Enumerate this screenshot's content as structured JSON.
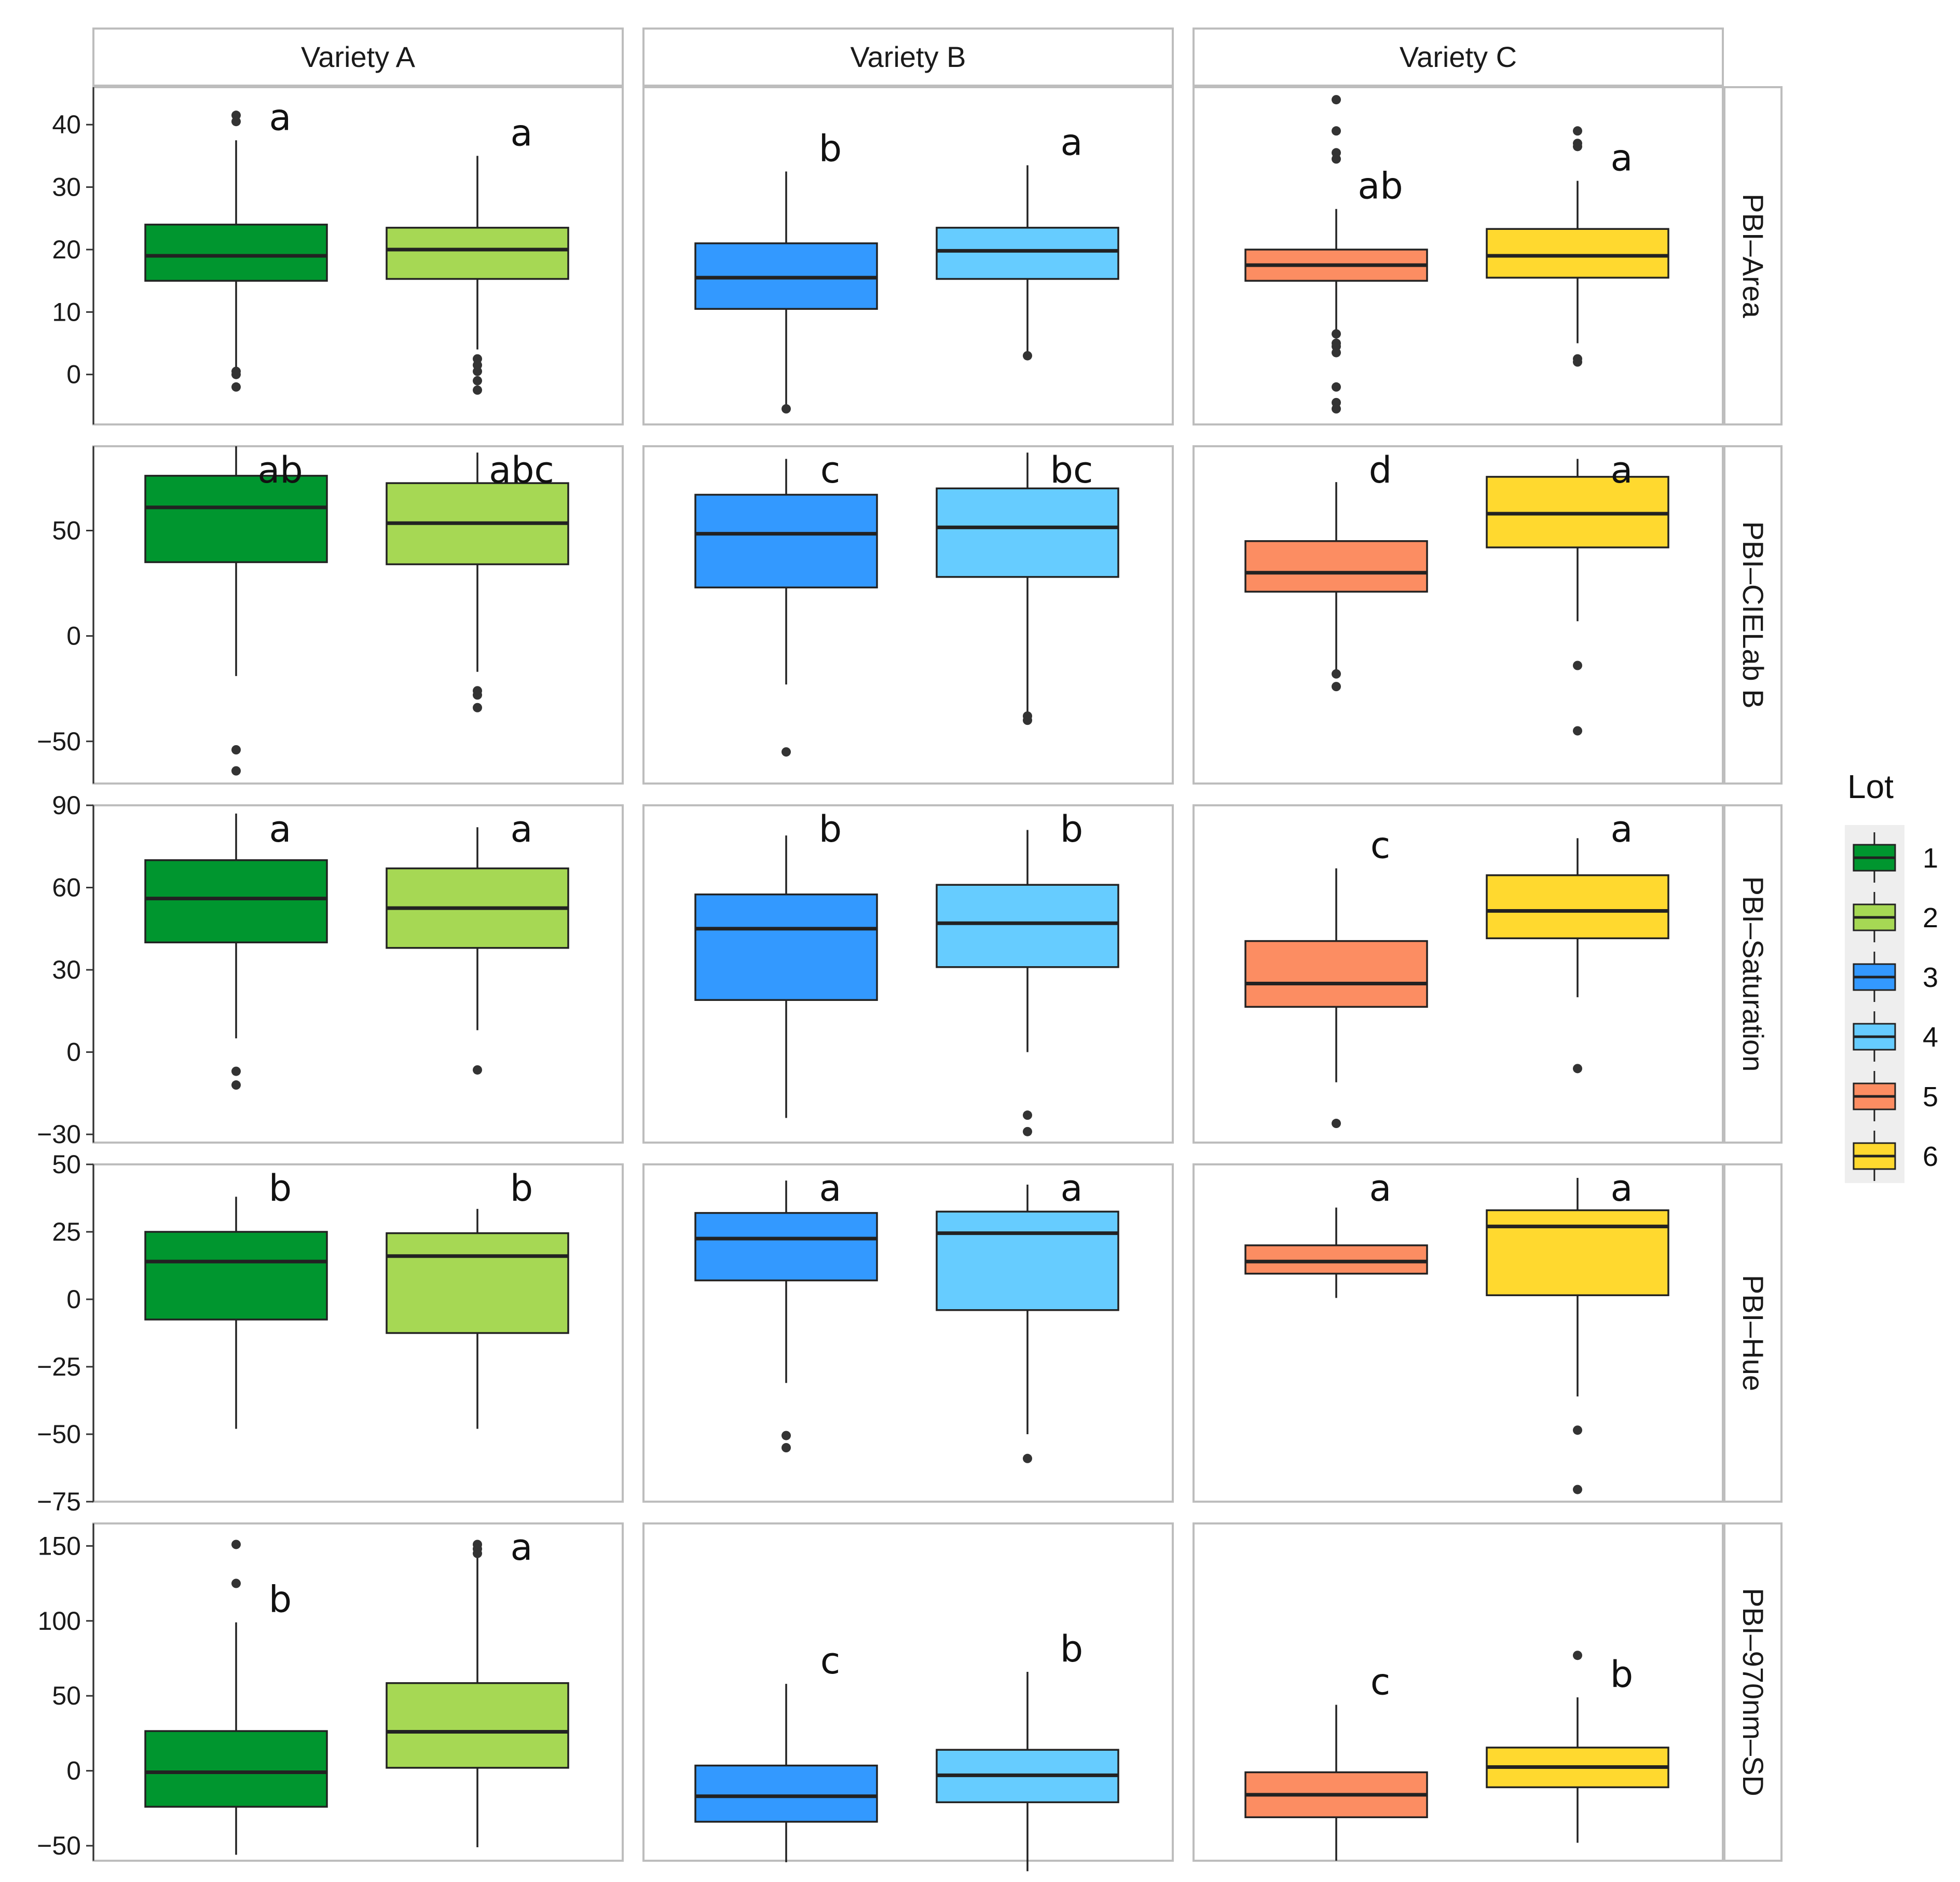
{
  "chart_data": {
    "type": "box",
    "columns": [
      "Variety A",
      "Variety B",
      "Variety C"
    ],
    "rows": [
      "PBI–Area",
      "PBI–CIELab B",
      "PBI–Saturation",
      "PBI–Hue",
      "PBI–970nm–SD"
    ],
    "legend": {
      "title": "Lot",
      "position": "right",
      "items": [
        {
          "label": "1",
          "color": "#00962F"
        },
        {
          "label": "2",
          "color": "#A6D854"
        },
        {
          "label": "3",
          "color": "#3399FF"
        },
        {
          "label": "4",
          "color": "#66CCFF"
        },
        {
          "label": "5",
          "color": "#FC8D62"
        },
        {
          "label": "6",
          "color": "#FFD92F"
        }
      ]
    },
    "grid": false,
    "panels": [
      {
        "row": "PBI–Area",
        "ylim": [
          -8,
          46
        ],
        "yticks": [
          0,
          10,
          20,
          30,
          40
        ],
        "ytick_labels": [
          "0",
          "10",
          "20",
          "30",
          "40"
        ],
        "columns": [
          {
            "variety": "Variety A",
            "boxes": [
              {
                "lot": "1",
                "lower_whisker": 1,
                "q1": 15,
                "median": 19,
                "q3": 24,
                "upper_whisker": 37.5,
                "outliers": [
                  41.5,
                  40.5,
                  0.5,
                  0,
                  -2
                ],
                "letter": "a"
              },
              {
                "lot": "2",
                "lower_whisker": 4,
                "q1": 15.3,
                "median": 20,
                "q3": 23.5,
                "upper_whisker": 35,
                "outliers": [
                  2.5,
                  1.5,
                  0.5,
                  -1,
                  -2.5
                ],
                "letter": "a"
              }
            ]
          },
          {
            "variety": "Variety B",
            "boxes": [
              {
                "lot": "3",
                "lower_whisker": -5.5,
                "q1": 10.5,
                "median": 15.5,
                "q3": 21,
                "upper_whisker": 32.5,
                "outliers": [
                  -5.5
                ],
                "letter": "b"
              },
              {
                "lot": "4",
                "lower_whisker": 3,
                "q1": 15.3,
                "median": 19.8,
                "q3": 23.5,
                "upper_whisker": 33.5,
                "outliers": [
                  3
                ],
                "letter": "a"
              }
            ]
          },
          {
            "variety": "Variety C",
            "boxes": [
              {
                "lot": "5",
                "lower_whisker": 7,
                "q1": 15,
                "median": 17.5,
                "q3": 20,
                "upper_whisker": 26.5,
                "outliers": [
                  44,
                  39,
                  35.5,
                  34.5,
                  6.5,
                  5,
                  4.5,
                  3.5,
                  -2,
                  -4.5,
                  -5.5
                ],
                "letter": "ab"
              },
              {
                "lot": "6",
                "lower_whisker": 5,
                "q1": 15.5,
                "median": 19,
                "q3": 23.3,
                "upper_whisker": 31,
                "outliers": [
                  39,
                  37,
                  36.5,
                  2.5,
                  2
                ],
                "letter": "a"
              }
            ]
          }
        ]
      },
      {
        "row": "PBI–CIELab B",
        "ylim": [
          -70,
          90
        ],
        "yticks": [
          -50,
          0,
          50
        ],
        "ytick_labels": [
          "−50",
          "0",
          "50"
        ],
        "columns": [
          {
            "variety": "Variety A",
            "boxes": [
              {
                "lot": "1",
                "lower_whisker": -19,
                "q1": 35,
                "median": 61,
                "q3": 76,
                "upper_whisker": 90,
                "outliers": [
                  -54,
                  -64
                ],
                "letter": "ab"
              },
              {
                "lot": "2",
                "lower_whisker": -17,
                "q1": 34,
                "median": 53.5,
                "q3": 72.5,
                "upper_whisker": 87,
                "outliers": [
                  -26,
                  -28,
                  -34
                ],
                "letter": "abc"
              }
            ]
          },
          {
            "variety": "Variety B",
            "boxes": [
              {
                "lot": "3",
                "lower_whisker": -23,
                "q1": 23,
                "median": 48.5,
                "q3": 67,
                "upper_whisker": 84,
                "outliers": [
                  -55
                ],
                "letter": "c"
              },
              {
                "lot": "4",
                "lower_whisker": -37,
                "q1": 28,
                "median": 51.5,
                "q3": 70,
                "upper_whisker": 87,
                "outliers": [
                  -38,
                  -40
                ],
                "letter": "bc"
              }
            ]
          },
          {
            "variety": "Variety C",
            "boxes": [
              {
                "lot": "5",
                "lower_whisker": -17,
                "q1": 21,
                "median": 30,
                "q3": 45,
                "upper_whisker": 73,
                "outliers": [
                  -18,
                  -24
                ],
                "letter": "d"
              },
              {
                "lot": "6",
                "lower_whisker": 7,
                "q1": 42,
                "median": 58,
                "q3": 75.5,
                "upper_whisker": 84,
                "outliers": [
                  -14,
                  -45
                ],
                "letter": "a"
              }
            ]
          }
        ]
      },
      {
        "row": "PBI–Saturation",
        "ylim": [
          -33,
          90
        ],
        "yticks": [
          -30,
          0,
          30,
          60,
          90
        ],
        "ytick_labels": [
          "−30",
          "0",
          "30",
          "60",
          "90"
        ],
        "columns": [
          {
            "variety": "Variety A",
            "boxes": [
              {
                "lot": "1",
                "lower_whisker": 5,
                "q1": 40,
                "median": 56,
                "q3": 70,
                "upper_whisker": 87,
                "outliers": [
                  -7,
                  -12
                ],
                "letter": "a"
              },
              {
                "lot": "2",
                "lower_whisker": 8,
                "q1": 38,
                "median": 52.5,
                "q3": 67,
                "upper_whisker": 82,
                "outliers": [
                  -6.5
                ],
                "letter": "a"
              }
            ]
          },
          {
            "variety": "Variety B",
            "boxes": [
              {
                "lot": "3",
                "lower_whisker": -24,
                "q1": 19,
                "median": 45,
                "q3": 57.5,
                "upper_whisker": 79,
                "outliers": [],
                "letter": "b"
              },
              {
                "lot": "4",
                "lower_whisker": 0,
                "q1": 31,
                "median": 47,
                "q3": 61,
                "upper_whisker": 81,
                "outliers": [
                  -23,
                  -29
                ],
                "letter": "b"
              }
            ]
          },
          {
            "variety": "Variety C",
            "boxes": [
              {
                "lot": "5",
                "lower_whisker": -11,
                "q1": 16.5,
                "median": 25,
                "q3": 40.5,
                "upper_whisker": 67,
                "outliers": [
                  -26
                ],
                "letter": "c"
              },
              {
                "lot": "6",
                "lower_whisker": 20,
                "q1": 41.5,
                "median": 51.5,
                "q3": 64.5,
                "upper_whisker": 78,
                "outliers": [
                  -6
                ],
                "letter": "a"
              }
            ]
          }
        ]
      },
      {
        "row": "PBI–Hue",
        "ylim": [
          -75,
          50
        ],
        "yticks": [
          -75,
          -50,
          -25,
          0,
          25,
          50
        ],
        "ytick_labels": [
          "−75",
          "−50",
          "−25",
          "0",
          "25",
          "50"
        ],
        "columns": [
          {
            "variety": "Variety A",
            "boxes": [
              {
                "lot": "1",
                "lower_whisker": -48,
                "q1": -7.5,
                "median": 14,
                "q3": 25,
                "upper_whisker": 38,
                "outliers": [],
                "letter": "b"
              },
              {
                "lot": "2",
                "lower_whisker": -48,
                "q1": -12.5,
                "median": 16,
                "q3": 24.5,
                "upper_whisker": 33.5,
                "outliers": [],
                "letter": "b"
              }
            ]
          },
          {
            "variety": "Variety B",
            "boxes": [
              {
                "lot": "3",
                "lower_whisker": -31,
                "q1": 7,
                "median": 22.5,
                "q3": 32,
                "upper_whisker": 44,
                "outliers": [
                  -50.5,
                  -55
                ],
                "letter": "a"
              },
              {
                "lot": "4",
                "lower_whisker": -50,
                "q1": -4,
                "median": 24.5,
                "q3": 32.5,
                "upper_whisker": 42.5,
                "outliers": [
                  -59
                ],
                "letter": "a"
              }
            ]
          },
          {
            "variety": "Variety C",
            "boxes": [
              {
                "lot": "5",
                "lower_whisker": 0.5,
                "q1": 9.5,
                "median": 14,
                "q3": 20,
                "upper_whisker": 34,
                "outliers": [],
                "letter": "a"
              },
              {
                "lot": "6",
                "lower_whisker": -36,
                "q1": 1.5,
                "median": 27,
                "q3": 33,
                "upper_whisker": 45,
                "outliers": [
                  -48.5,
                  -70.5
                ],
                "letter": "a"
              }
            ]
          }
        ]
      },
      {
        "row": "PBI–970nm–SD",
        "ylim": [
          -60,
          165
        ],
        "yticks": [
          -50,
          0,
          50,
          100,
          150
        ],
        "ytick_labels": [
          "−50",
          "0",
          "50",
          "100",
          "150"
        ],
        "columns": [
          {
            "variety": "Variety A",
            "boxes": [
              {
                "lot": "1",
                "lower_whisker": -56,
                "q1": -24,
                "median": -1,
                "q3": 26.5,
                "upper_whisker": 99,
                "outliers": [
                  151,
                  125
                ],
                "letter": "b"
              },
              {
                "lot": "2",
                "lower_whisker": -51,
                "q1": 2,
                "median": 26,
                "q3": 58.5,
                "upper_whisker": 142,
                "outliers": [
                  151,
                  148,
                  145
                ],
                "letter": "a"
              }
            ]
          },
          {
            "variety": "Variety B",
            "boxes": [
              {
                "lot": "3",
                "lower_whisker": -61,
                "q1": -34,
                "median": -17,
                "q3": 3.5,
                "upper_whisker": 58,
                "outliers": [],
                "letter": "c"
              },
              {
                "lot": "4",
                "lower_whisker": -67,
                "q1": -21,
                "median": -3,
                "q3": 14,
                "upper_whisker": 66,
                "outliers": [],
                "letter": "b"
              }
            ]
          },
          {
            "variety": "Variety C",
            "boxes": [
              {
                "lot": "5",
                "lower_whisker": -60,
                "q1": -31,
                "median": -16,
                "q3": -1,
                "upper_whisker": 44,
                "outliers": [],
                "letter": "c"
              },
              {
                "lot": "6",
                "lower_whisker": -48,
                "q1": -11,
                "median": 2.5,
                "q3": 15.5,
                "upper_whisker": 49,
                "outliers": [
                  77
                ],
                "letter": "b"
              }
            ]
          }
        ]
      }
    ]
  }
}
